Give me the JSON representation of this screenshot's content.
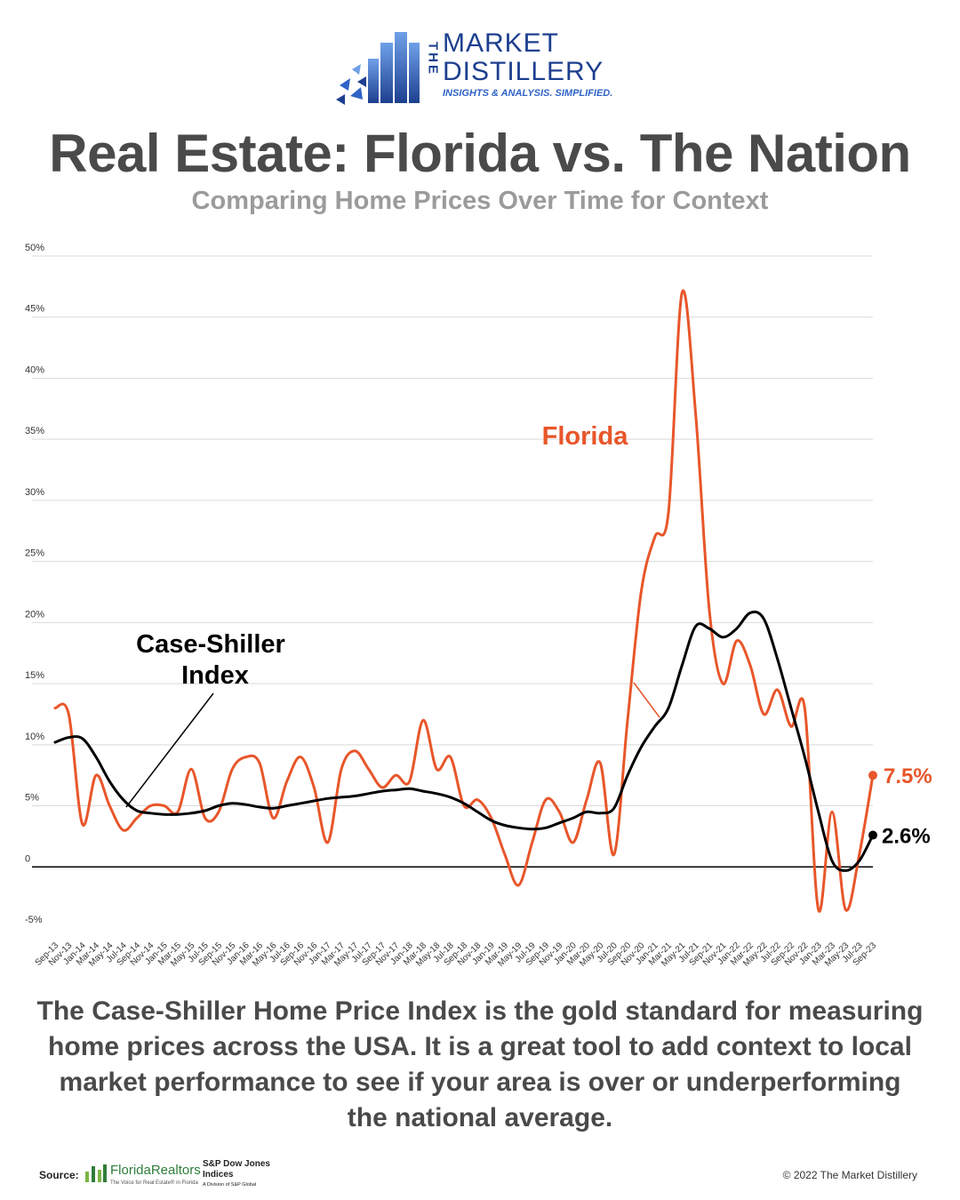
{
  "brand": {
    "the": "THE",
    "market": "MARKET",
    "distillery": "DISTILLERY",
    "tagline": "INSIGHTS & ANALYSIS. SIMPLIFIED."
  },
  "title": "Real Estate: Florida vs. The Nation",
  "subtitle": "Comparing Home Prices Over Time for Context",
  "annotations": {
    "florida": "Florida",
    "cs_line1": "Case-Shiller",
    "cs_line2": "Index",
    "florida_end": "7.5%",
    "cs_end": "2.6%"
  },
  "description": "The Case-Shiller Home Price Index is the gold standard for measuring home prices across the USA. It is a great tool to add context to local market performance to see if your area is over or underperforming the national average.",
  "footer": {
    "source_label": "Source:",
    "fr_name": "FloridaRealtors",
    "fr_tagline": "The Voice for Real Estate® in Florida",
    "sp_line1": "S&P Dow Jones",
    "sp_line2": "Indices",
    "sp_line3": "A Division of S&P Global",
    "copyright": "© 2022 The Market Distillery"
  },
  "colors": {
    "florida": "#e8562a",
    "case_shiller": "#000000",
    "brand_blue": "#1d3f8f",
    "title": "#4a4a4a",
    "subtitle": "#9b9b9b"
  },
  "chart_data": {
    "type": "line",
    "y_ticks": [
      "50%",
      "45%",
      "40%",
      "35%",
      "30%",
      "25%",
      "20%",
      "15%",
      "10%",
      "5%",
      "0",
      "-5%"
    ],
    "ylim": [
      -5,
      50
    ],
    "grid": true,
    "x_tick_labels": [
      "Sep-13",
      "Nov-13",
      "Jan-14",
      "Mar-14",
      "May-14",
      "Jul-14",
      "Sep-14",
      "Nov-14",
      "Jan-15",
      "Mar-15",
      "May-15",
      "Jul-15",
      "Sep-15",
      "Nov-15",
      "Jan-16",
      "Mar-16",
      "May-16",
      "Jul-16",
      "Sep-16",
      "Nov-16",
      "Jan-17",
      "Mar-17",
      "May-17",
      "Jul-17",
      "Sep-17",
      "Nov-17",
      "Jan-18",
      "Mar-18",
      "May-18",
      "Jul-18",
      "Sep-18",
      "Nov-18",
      "Jan-19",
      "Mar-19",
      "May-19",
      "Jul-19",
      "Sep-19",
      "Nov-19",
      "Jan-20",
      "Mar-20",
      "May-20",
      "Jul-20",
      "Sep-20",
      "Nov-20",
      "Jan-21",
      "Mar-21",
      "May-21",
      "Jul-21",
      "Sep-21",
      "Nov-21",
      "Jan-22",
      "Mar-22",
      "May-22",
      "Jul-22",
      "Sep-22",
      "Nov-22",
      "Jan-23",
      "Mar-23",
      "May-23",
      "Jul-23",
      "Sep-23"
    ],
    "x": [
      "Sep-13",
      "Nov-13",
      "Jan-14",
      "Mar-14",
      "May-14",
      "Jul-14",
      "Sep-14",
      "Nov-14",
      "Jan-15",
      "Mar-15",
      "May-15",
      "Jul-15",
      "Sep-15",
      "Nov-15",
      "Jan-16",
      "Mar-16",
      "May-16",
      "Jul-16",
      "Sep-16",
      "Nov-16",
      "Jan-17",
      "Mar-17",
      "May-17",
      "Jul-17",
      "Sep-17",
      "Nov-17",
      "Jan-18",
      "Mar-18",
      "May-18",
      "Jul-18",
      "Sep-18",
      "Nov-18",
      "Jan-19",
      "Mar-19",
      "May-19",
      "Jul-19",
      "Sep-19",
      "Nov-19",
      "Jan-20",
      "Mar-20",
      "May-20",
      "Jul-20",
      "Sep-20",
      "Nov-20",
      "Jan-21",
      "Mar-21",
      "May-21",
      "Jul-21",
      "Sep-21",
      "Nov-21",
      "Jan-22",
      "Mar-22",
      "May-22",
      "Jul-22",
      "Sep-22",
      "Nov-22",
      "Jan-23",
      "Mar-23",
      "May-23",
      "Jul-23",
      "Sep-23"
    ],
    "series": [
      {
        "name": "Florida",
        "values": [
          13.0,
          12.5,
          3.5,
          7.5,
          5.0,
          3.0,
          4.0,
          5.0,
          5.0,
          4.5,
          8.0,
          4.0,
          4.5,
          8.0,
          9.0,
          8.5,
          4.0,
          7.0,
          9.0,
          6.5,
          2.0,
          8.0,
          9.5,
          8.0,
          6.5,
          7.5,
          7.0,
          12.0,
          8.0,
          9.0,
          5.0,
          5.5,
          4.0,
          1.0,
          -1.5,
          2.0,
          5.5,
          4.5,
          2.0,
          5.5,
          8.5,
          1.0,
          12.0,
          22.5,
          27.0,
          29.0,
          47.0,
          37.0,
          21.0,
          15.0,
          18.5,
          16.5,
          12.5,
          14.5,
          11.5,
          13.0,
          -3.5,
          4.5,
          -3.5,
          1.0,
          7.5
        ]
      },
      {
        "name": "Case-Shiller Index",
        "values": [
          10.2,
          10.6,
          10.5,
          9.0,
          7.0,
          5.5,
          4.6,
          4.4,
          4.3,
          4.3,
          4.4,
          4.6,
          5.0,
          5.2,
          5.1,
          4.9,
          4.8,
          5.0,
          5.2,
          5.4,
          5.6,
          5.7,
          5.8,
          6.0,
          6.2,
          6.3,
          6.4,
          6.2,
          6.0,
          5.7,
          5.2,
          4.5,
          3.8,
          3.4,
          3.2,
          3.1,
          3.2,
          3.6,
          4.0,
          4.5,
          4.4,
          4.8,
          7.5,
          9.8,
          11.5,
          13.0,
          16.5,
          19.7,
          19.5,
          18.8,
          19.5,
          20.8,
          20.3,
          17.0,
          13.0,
          9.0,
          4.5,
          0.5,
          -0.3,
          0.5,
          2.6
        ]
      }
    ]
  }
}
